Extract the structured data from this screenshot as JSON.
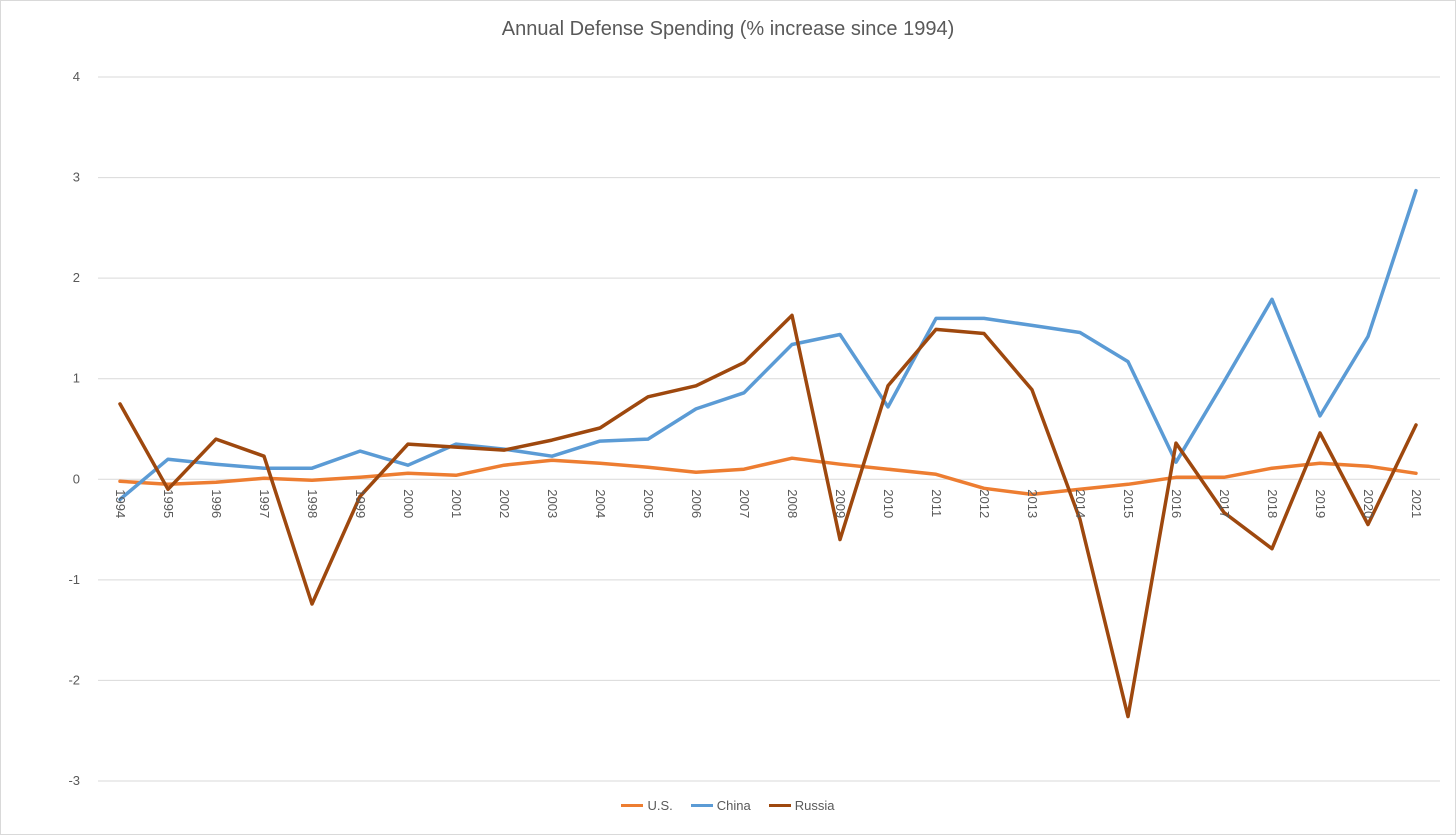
{
  "chart_data": {
    "type": "line",
    "title": "Annual Defense Spending (% increase since 1994)",
    "xlabel": "",
    "ylabel": "",
    "ylim": [
      -3,
      4
    ],
    "yticks": [
      4,
      3,
      2,
      1,
      0,
      -1,
      -2,
      -3
    ],
    "grid": true,
    "legend_position": "bottom",
    "categories": [
      "1994",
      "1995",
      "1996",
      "1997",
      "1998",
      "1999",
      "2000",
      "2001",
      "2002",
      "2003",
      "2004",
      "2005",
      "2006",
      "2007",
      "2008",
      "2009",
      "2010",
      "2011",
      "2012",
      "2013",
      "2014",
      "2015",
      "2016",
      "2017",
      "2018",
      "2019",
      "2020",
      "2021"
    ],
    "series": [
      {
        "name": "U.S.",
        "color": "#ED7D31",
        "values": [
          -0.02,
          -0.05,
          -0.03,
          0.01,
          -0.01,
          0.02,
          0.06,
          0.04,
          0.14,
          0.19,
          0.16,
          0.12,
          0.07,
          0.1,
          0.21,
          0.15,
          0.1,
          0.05,
          -0.09,
          -0.15,
          -0.1,
          -0.05,
          0.02,
          0.02,
          0.11,
          0.16,
          0.13,
          0.06
        ]
      },
      {
        "name": "China",
        "color": "#5B9BD5",
        "values": [
          -0.2,
          0.2,
          0.15,
          0.11,
          0.11,
          0.28,
          0.14,
          0.35,
          0.3,
          0.23,
          0.38,
          0.4,
          0.7,
          0.86,
          1.34,
          1.44,
          0.72,
          1.6,
          1.6,
          1.53,
          1.46,
          1.17,
          0.17,
          0.97,
          1.79,
          0.63,
          1.42,
          2.87
        ]
      },
      {
        "name": "Russia",
        "color": "#9E480E",
        "values": [
          0.75,
          -0.1,
          0.4,
          0.23,
          -1.24,
          -0.17,
          0.35,
          0.32,
          0.29,
          0.39,
          0.51,
          0.82,
          0.93,
          1.16,
          1.63,
          -0.6,
          0.93,
          1.49,
          1.45,
          0.89,
          -0.4,
          -2.36,
          0.36,
          -0.33,
          -0.69,
          0.46,
          -0.45,
          0.54
        ]
      }
    ]
  }
}
